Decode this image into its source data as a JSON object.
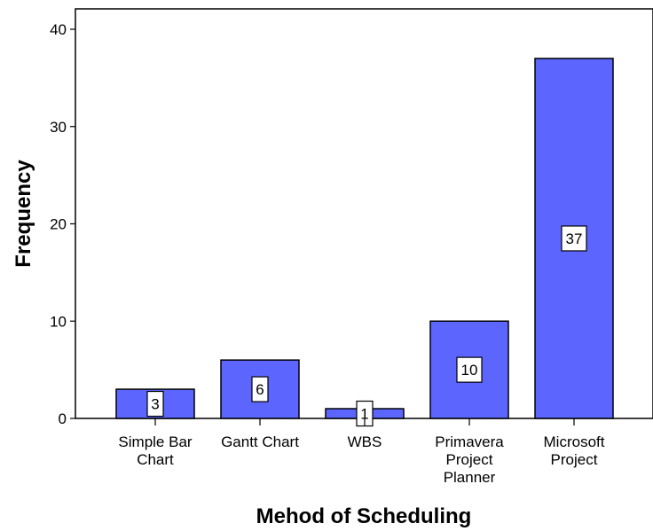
{
  "chart_data": {
    "type": "bar",
    "categories": [
      [
        "Simple Bar",
        "Chart"
      ],
      [
        "Gantt Chart"
      ],
      [
        "WBS"
      ],
      [
        "Primavera",
        "Project",
        "Planner"
      ],
      [
        "Microsoft",
        "Project"
      ]
    ],
    "values": [
      3,
      6,
      1,
      10,
      37
    ],
    "data_labels": [
      "3",
      "6",
      "1",
      "10",
      "37"
    ],
    "xlabel": "Mehod of Scheduling",
    "ylabel": "Frequency",
    "ylim": [
      0,
      40
    ],
    "yticks": [
      0,
      10,
      20,
      30,
      40
    ],
    "ytick_labels": [
      "0",
      "10",
      "20",
      "30",
      "40"
    ],
    "bar_color": "#5c66ff",
    "bar_edge_color": "#000000",
    "grid": false,
    "legend": "none"
  }
}
